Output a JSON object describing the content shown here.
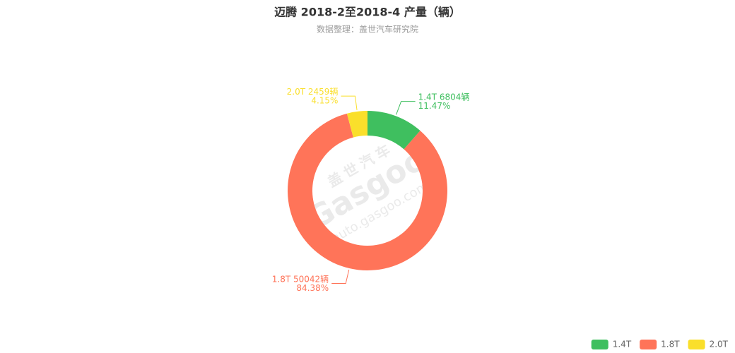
{
  "chart_data": {
    "type": "donut",
    "title": "迈腾 2018-2至2018-4 产量（辆）",
    "subtitle": "数据整理：盖世汽车研究院",
    "categories": [
      "1.4T",
      "1.8T",
      "2.0T"
    ],
    "values": [
      6804,
      50042,
      2459
    ],
    "value_labels": [
      "6804辆",
      "50042辆",
      "2459辆"
    ],
    "shares": [
      11.47,
      84.38,
      4.15
    ],
    "share_labels": [
      "11.47%",
      "84.38%",
      "4.15%"
    ],
    "colors": [
      "#3fbf5f",
      "#ff7459",
      "#fadf2b"
    ],
    "legend": "bottom-right",
    "watermark": {
      "brand": "盖世汽车",
      "logo": "Gasgoo",
      "url": "auto.gasgoo.com"
    }
  }
}
